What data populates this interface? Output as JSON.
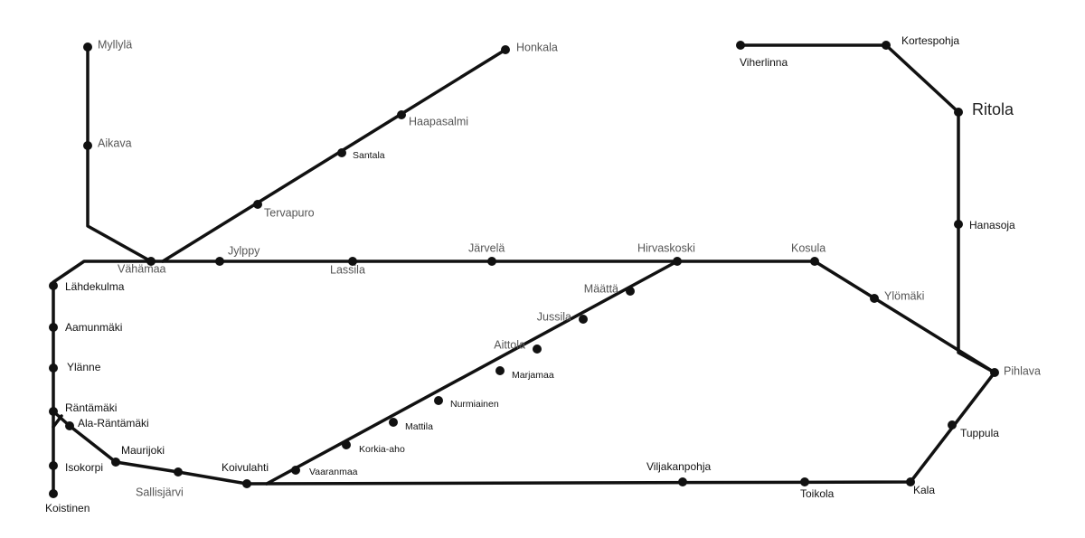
{
  "nodes": [
    {
      "label": "Myllylä"
    },
    {
      "label": "Aikava"
    },
    {
      "label": "Vähämaa"
    },
    {
      "label": "Honkala"
    },
    {
      "label": "Haapasalmi"
    },
    {
      "label": "Santala"
    },
    {
      "label": "Tervapuro"
    },
    {
      "label": "Jylppy"
    },
    {
      "label": "Lassila"
    },
    {
      "label": "Järvelä"
    },
    {
      "label": "Hirvaskoski"
    },
    {
      "label": "Kosula"
    },
    {
      "label": "Ylömäki"
    },
    {
      "label": "Pihlava"
    },
    {
      "label": "Viherlinna"
    },
    {
      "label": "Kortespohja"
    },
    {
      "label": "Ritola"
    },
    {
      "label": "Hanasoja"
    },
    {
      "label": "Tuppula"
    },
    {
      "label": "Kala"
    },
    {
      "label": "Toikola"
    },
    {
      "label": "Viljakanpohja"
    },
    {
      "label": "Koivulahti"
    },
    {
      "label": "Vaaranmaa"
    },
    {
      "label": "Korkia-aho"
    },
    {
      "label": "Mattila"
    },
    {
      "label": "Nurmiainen"
    },
    {
      "label": "Marjamaa"
    },
    {
      "label": "Aittola"
    },
    {
      "label": "Jussila"
    },
    {
      "label": "Määttä"
    },
    {
      "label": "Lähdekulma"
    },
    {
      "label": "Aamunmäki"
    },
    {
      "label": "Ylänne"
    },
    {
      "label": "Räntämäki"
    },
    {
      "label": "Ala-Räntämäki"
    },
    {
      "label": "Maurijoki"
    },
    {
      "label": "Sallisjärvi"
    },
    {
      "label": "Isokorpi"
    },
    {
      "label": "Koistinen"
    }
  ]
}
